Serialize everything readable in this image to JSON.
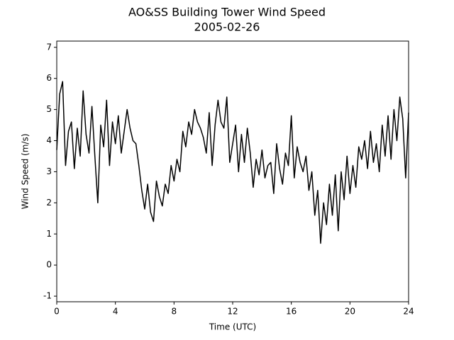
{
  "chart_data": {
    "type": "line",
    "title": "AO&SS Building Tower Wind Speed",
    "subtitle": "2005-02-26",
    "x_label": "Time (UTC)",
    "y_label": "Wind Speed (m/s)",
    "xlim": [
      0,
      24
    ],
    "xticks": [
      0,
      4,
      8,
      12,
      16,
      20,
      24
    ],
    "ylim": [
      -1.18,
      7.2
    ],
    "yticks": [
      -1,
      0,
      1,
      2,
      3,
      4,
      5,
      6,
      7
    ],
    "x": [
      0.0,
      0.2,
      0.4,
      0.6,
      0.8,
      1.0,
      1.2,
      1.4,
      1.6,
      1.8,
      2.0,
      2.2,
      2.4,
      2.6,
      2.8,
      3.0,
      3.2,
      3.4,
      3.6,
      3.8,
      4.0,
      4.2,
      4.4,
      4.6,
      4.8,
      5.0,
      5.2,
      5.4,
      5.6,
      5.8,
      6.0,
      6.2,
      6.4,
      6.6,
      6.8,
      7.0,
      7.2,
      7.4,
      7.6,
      7.8,
      8.0,
      8.2,
      8.4,
      8.6,
      8.8,
      9.0,
      9.2,
      9.4,
      9.6,
      9.8,
      10.0,
      10.2,
      10.4,
      10.6,
      10.8,
      11.0,
      11.2,
      11.4,
      11.6,
      11.8,
      12.0,
      12.2,
      12.4,
      12.6,
      12.8,
      13.0,
      13.2,
      13.4,
      13.6,
      13.8,
      14.0,
      14.2,
      14.4,
      14.6,
      14.8,
      15.0,
      15.2,
      15.4,
      15.6,
      15.8,
      16.0,
      16.2,
      16.4,
      16.6,
      16.8,
      17.0,
      17.2,
      17.4,
      17.6,
      17.8,
      18.0,
      18.2,
      18.4,
      18.6,
      18.8,
      19.0,
      19.2,
      19.4,
      19.6,
      19.8,
      20.0,
      20.2,
      20.4,
      20.6,
      20.8,
      21.0,
      21.2,
      21.4,
      21.6,
      21.8,
      22.0,
      22.2,
      22.4,
      22.6,
      22.8,
      23.0,
      23.2,
      23.4,
      23.6,
      23.8,
      24.0
    ],
    "series": [
      {
        "color": "#000000",
        "values": [
          3.7,
          5.5,
          5.9,
          3.2,
          4.3,
          4.6,
          3.1,
          4.4,
          3.5,
          5.6,
          4.2,
          3.6,
          5.1,
          3.5,
          2.0,
          4.5,
          3.8,
          5.3,
          3.2,
          4.6,
          3.9,
          4.8,
          3.6,
          4.3,
          5.0,
          4.4,
          4.0,
          3.9,
          3.2,
          2.4,
          1.8,
          2.6,
          1.7,
          1.4,
          2.7,
          2.2,
          1.9,
          2.6,
          2.3,
          3.2,
          2.7,
          3.4,
          3.0,
          4.3,
          3.8,
          4.6,
          4.2,
          5.0,
          4.6,
          4.4,
          4.1,
          3.6,
          4.9,
          3.2,
          4.5,
          5.3,
          4.6,
          4.4,
          5.4,
          3.3,
          3.9,
          4.5,
          3.0,
          4.2,
          3.3,
          4.4,
          3.6,
          2.5,
          3.4,
          2.9,
          3.7,
          2.8,
          3.2,
          3.3,
          2.3,
          3.9,
          3.1,
          2.6,
          3.6,
          3.2,
          4.8,
          2.8,
          3.8,
          3.3,
          3.0,
          3.5,
          2.4,
          3.0,
          1.6,
          2.4,
          0.7,
          2.0,
          1.3,
          2.6,
          1.6,
          2.9,
          1.1,
          3.0,
          2.1,
          3.5,
          2.3,
          3.2,
          2.5,
          3.8,
          3.4,
          4.0,
          3.1,
          4.3,
          3.3,
          3.9,
          3.0,
          4.5,
          3.5,
          4.8,
          3.4,
          5.0,
          4.0,
          5.4,
          4.7,
          2.8,
          4.9
        ]
      }
    ]
  }
}
